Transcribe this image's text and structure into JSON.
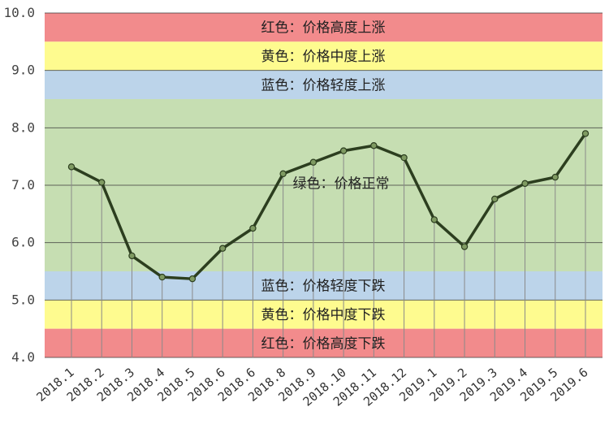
{
  "chart_data": {
    "type": "line",
    "categories": [
      "2018.1",
      "2018.2",
      "2018.3",
      "2018.4",
      "2018.5",
      "2018.6",
      "2018.6",
      "2018.8",
      "2018.9",
      "2018.10",
      "2018.11",
      "2018.12",
      "2019.1",
      "2019.2",
      "2019.3",
      "2019.4",
      "2019.5",
      "2019.6"
    ],
    "values": [
      7.32,
      7.05,
      5.77,
      5.4,
      5.37,
      5.9,
      6.25,
      7.2,
      7.4,
      7.6,
      7.69,
      7.48,
      6.4,
      5.93,
      6.76,
      7.03,
      7.14,
      7.9
    ],
    "ylim": [
      4.0,
      10.0
    ],
    "yticks": [
      "4.0",
      "5.0",
      "6.0",
      "7.0",
      "8.0",
      "9.0",
      "10.0"
    ],
    "grid": true,
    "colors": {
      "line": "#2c3e1f",
      "marker": "#7f9a62",
      "red": "#f28b8c",
      "yellow": "#fefb8f",
      "blue": "#bcd4ea",
      "green": "#c6deb2",
      "gridline": "#3a3a3a"
    },
    "bands": [
      {
        "from": 9.5,
        "to": 10.0,
        "color": "red",
        "label": "红色：价格高度上涨"
      },
      {
        "from": 9.0,
        "to": 9.5,
        "color": "yellow",
        "label": "黄色：价格中度上涨"
      },
      {
        "from": 8.5,
        "to": 9.0,
        "color": "blue",
        "label": "蓝色：价格轻度上涨"
      },
      {
        "from": 5.5,
        "to": 8.5,
        "color": "green",
        "label": "绿色：价格正常"
      },
      {
        "from": 5.0,
        "to": 5.5,
        "color": "blue",
        "label": "蓝色：价格轻度下跌"
      },
      {
        "from": 4.5,
        "to": 5.0,
        "color": "yellow",
        "label": "黄色：价格中度下跌"
      },
      {
        "from": 4.0,
        "to": 4.5,
        "color": "red",
        "label": "红色：价格高度下跌"
      }
    ]
  }
}
